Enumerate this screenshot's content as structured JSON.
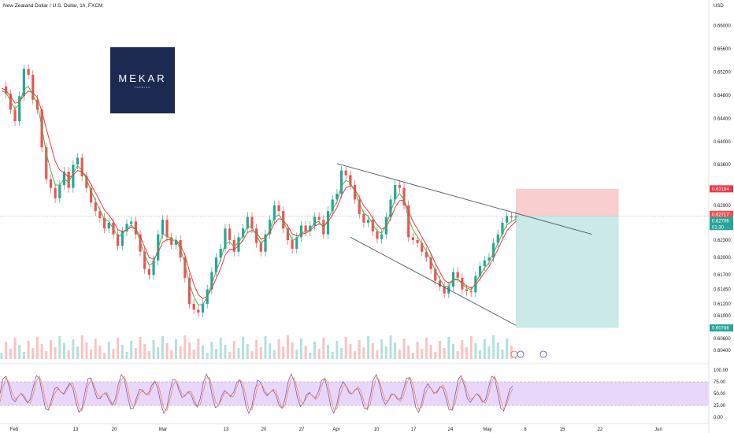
{
  "header": {
    "title": "New Zealand Dollar / U.S. Dollar, 1h, FXCM",
    "currency": "USD"
  },
  "logo": {
    "word": "MEKAR",
    "sub": "TRADING"
  },
  "colors": {
    "up": "#26a69a",
    "down": "#ef5350",
    "ma_fast": "#4caf50",
    "ma_slow": "#f23645",
    "stop_zone": "#f7c5c5",
    "target_zone": "#c4e7e4",
    "osc_band": "#e9d7fb",
    "osc_line": "#7e57c2",
    "osc_line2": "#ef8a4a",
    "current_tag": "#26a69a",
    "stop_tag": "#f23645",
    "target_tag": "#26a69a",
    "last_tag": "#ef5350"
  },
  "chart_data": [
    {
      "type": "line",
      "name": "price",
      "x_label_ticks": [
        "Feb",
        "13",
        "20",
        "Mar",
        "13",
        "20",
        "27",
        "Apr",
        "10",
        "17",
        "24",
        "May",
        "8",
        "15",
        "22",
        "Jun"
      ],
      "y_ticks": [
        "0.66000",
        "0.65600",
        "0.65200",
        "0.64800",
        "0.64400",
        "0.64000",
        "0.63600",
        "0.62900",
        "0.62300",
        "0.62000",
        "0.61700",
        "0.61450",
        "0.61200",
        "0.61000",
        "0.60600",
        "0.60400"
      ],
      "ylim": [
        0.6025,
        0.6625
      ],
      "x_index_range": [
        0,
        115
      ],
      "series": [
        {
          "values": [
            0.6495,
            0.6482,
            0.6455,
            0.6435,
            0.6478,
            0.6525,
            0.6515,
            0.6472,
            0.6455,
            0.639,
            0.6335,
            0.632,
            0.6302,
            0.6325,
            0.6348,
            0.632,
            0.636,
            0.6372,
            0.634,
            0.632,
            0.6295,
            0.628,
            0.6268,
            0.625,
            0.626,
            0.624,
            0.622,
            0.6245,
            0.6258,
            0.6262,
            0.624,
            0.621,
            0.618,
            0.617,
            0.6195,
            0.624,
            0.6265,
            0.6235,
            0.6222,
            0.623,
            0.62,
            0.6165,
            0.612,
            0.611,
            0.6105,
            0.612,
            0.6145,
            0.6175,
            0.62,
            0.6215,
            0.625,
            0.623,
            0.621,
            0.6235,
            0.625,
            0.627,
            0.625,
            0.6225,
            0.621,
            0.624,
            0.6265,
            0.629,
            0.628,
            0.625,
            0.623,
            0.6215,
            0.6235,
            0.6255,
            0.6245,
            0.6255,
            0.627,
            0.6265,
            0.624,
            0.628,
            0.63,
            0.631,
            0.635,
            0.6342,
            0.6325,
            0.63,
            0.6275,
            0.626,
            0.6265,
            0.6245,
            0.6232,
            0.624,
            0.627,
            0.63,
            0.6325,
            0.632,
            0.629,
            0.6235,
            0.623,
            0.6225,
            0.621,
            0.62,
            0.618,
            0.616,
            0.615,
            0.6138,
            0.615,
            0.6175,
            0.6165,
            0.6145,
            0.6142,
            0.614,
            0.6168,
            0.6185,
            0.6195,
            0.62,
            0.6225,
            0.624,
            0.626,
            0.6271,
            0.6269,
            0.6271
          ]
        }
      ],
      "moving_average_fast": [
        0.6488,
        0.6484,
        0.647,
        0.6456,
        0.6465,
        0.649,
        0.6495,
        0.648,
        0.6465,
        0.6425,
        0.638,
        0.635,
        0.6325,
        0.6325,
        0.6335,
        0.633,
        0.6345,
        0.6358,
        0.635,
        0.6335,
        0.6315,
        0.6298,
        0.6282,
        0.6266,
        0.6262,
        0.625,
        0.6236,
        0.624,
        0.6249,
        0.6256,
        0.6248,
        0.6229,
        0.6204,
        0.6187,
        0.6191,
        0.6215,
        0.624,
        0.6238,
        0.623,
        0.623,
        0.6215,
        0.619,
        0.6155,
        0.6132,
        0.6118,
        0.6119,
        0.6132,
        0.6154,
        0.6177,
        0.6196,
        0.6223,
        0.6227,
        0.6218,
        0.6226,
        0.6238,
        0.6254,
        0.6252,
        0.6238,
        0.6224,
        0.6232,
        0.6248,
        0.6269,
        0.6274,
        0.6262,
        0.6246,
        0.623,
        0.6232,
        0.6243,
        0.6244,
        0.6249,
        0.626,
        0.6262,
        0.6251,
        0.6265,
        0.6283,
        0.6296,
        0.6323,
        0.6333,
        0.6329,
        0.6314,
        0.6294,
        0.6277,
        0.6271,
        0.6258,
        0.6245,
        0.6242,
        0.6256,
        0.6278,
        0.6301,
        0.631,
        0.63,
        0.6267,
        0.6248,
        0.6236,
        0.6223,
        0.6211,
        0.6195,
        0.6177,
        0.6163,
        0.615,
        0.615,
        0.6162,
        0.6163,
        0.6154,
        0.6148,
        0.6144,
        0.6156,
        0.617,
        0.6182,
        0.6191,
        0.6208,
        0.6224,
        0.6242,
        0.6256,
        0.6262,
        0.6266
      ],
      "moving_average_slow": [
        0.6492,
        0.6488,
        0.6478,
        0.6466,
        0.6468,
        0.648,
        0.6487,
        0.6484,
        0.6476,
        0.6452,
        0.6422,
        0.6394,
        0.6366,
        0.6351,
        0.6346,
        0.6338,
        0.6342,
        0.635,
        0.6348,
        0.634,
        0.6326,
        0.6312,
        0.6297,
        0.6282,
        0.6273,
        0.6262,
        0.6248,
        0.6245,
        0.6248,
        0.6252,
        0.6249,
        0.6237,
        0.6218,
        0.62,
        0.6197,
        0.6208,
        0.6226,
        0.6231,
        0.623,
        0.623,
        0.6222,
        0.6204,
        0.6177,
        0.6154,
        0.6136,
        0.6129,
        0.6133,
        0.6147,
        0.6164,
        0.6181,
        0.6204,
        0.6214,
        0.6214,
        0.622,
        0.623,
        0.6243,
        0.6247,
        0.6242,
        0.6232,
        0.6234,
        0.6243,
        0.6259,
        0.6267,
        0.6264,
        0.6254,
        0.6241,
        0.6237,
        0.624,
        0.6242,
        0.6246,
        0.6254,
        0.6258,
        0.6254,
        0.6261,
        0.6274,
        0.6286,
        0.6306,
        0.632,
        0.6324,
        0.6317,
        0.6304,
        0.6289,
        0.628,
        0.6268,
        0.6256,
        0.6249,
        0.6253,
        0.6267,
        0.6286,
        0.6298,
        0.6299,
        0.628,
        0.6262,
        0.6249,
        0.6235,
        0.6222,
        0.6207,
        0.619,
        0.6175,
        0.6161,
        0.6156,
        0.6161,
        0.6162,
        0.6157,
        0.6151,
        0.6147,
        0.6153,
        0.6163,
        0.6174,
        0.6184,
        0.6199,
        0.6214,
        0.6231,
        0.6246,
        0.6255,
        0.6262
      ],
      "wedge_upper": [
        {
          "x": 75,
          "y": 0.6362
        },
        {
          "x": 132,
          "y": 0.624
        }
      ],
      "wedge_lower": [
        {
          "x": 78,
          "y": 0.6235
        },
        {
          "x": 115,
          "y": 0.6083
        }
      ],
      "position": {
        "type": "short",
        "entry": 0.62717,
        "stop": 0.63184,
        "target": 0.60786,
        "x_start": 115,
        "x_end": 138
      },
      "current_price_label": "0.62706",
      "countdown_label": "01:30",
      "entry_label": "0.62717",
      "stop_label": "0.63184",
      "target_label": "0.60786"
    },
    {
      "type": "line",
      "name": "oscillator",
      "y_ticks": [
        "100.00",
        "75.00",
        "50.00",
        "25.00",
        "0.00"
      ],
      "ylim": [
        0,
        100
      ],
      "band": [
        25,
        75
      ]
    }
  ]
}
